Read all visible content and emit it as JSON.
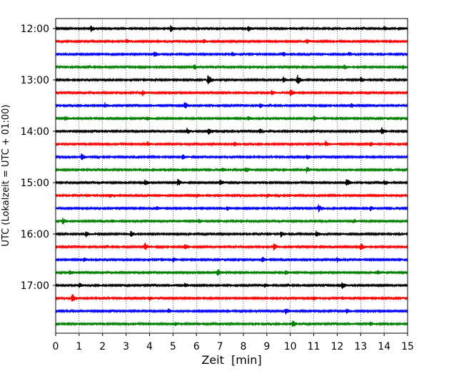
{
  "chart_data": {
    "type": "line",
    "title": "",
    "xlabel": "Zeit  [min]",
    "ylabel": "UTC (Lokalzeit = UTC + 01:00)",
    "xlim": [
      0,
      15
    ],
    "x_ticks": [
      "0",
      "1",
      "2",
      "3",
      "4",
      "5",
      "6",
      "7",
      "8",
      "9",
      "10",
      "11",
      "12",
      "13",
      "14",
      "15"
    ],
    "y_ticks": [
      "12:00",
      "13:00",
      "14:00",
      "15:00",
      "16:00",
      "17:00"
    ],
    "x_grid": "dotted",
    "trace_colors": [
      "#000000",
      "#ff0000",
      "#0000ff",
      "#008000"
    ],
    "series": [
      {
        "start": "12:00",
        "color": "#000000",
        "bursts": [
          {
            "t": 1.5,
            "a": 4
          },
          {
            "t": 4.9,
            "a": 5
          },
          {
            "t": 8.2,
            "a": 5
          },
          {
            "t": 14.0,
            "a": 3
          }
        ]
      },
      {
        "start": "12:15",
        "color": "#ff0000",
        "bursts": [
          {
            "t": 3.0,
            "a": 3
          },
          {
            "t": 6.3,
            "a": 3
          },
          {
            "t": 10.7,
            "a": 3
          }
        ]
      },
      {
        "start": "12:30",
        "color": "#0000ff",
        "bursts": [
          {
            "t": 4.2,
            "a": 5
          },
          {
            "t": 7.5,
            "a": 3
          },
          {
            "t": 9.7,
            "a": 3
          },
          {
            "t": 12.5,
            "a": 3
          }
        ]
      },
      {
        "start": "12:45",
        "color": "#008000",
        "bursts": [
          {
            "t": 5.9,
            "a": 4
          },
          {
            "t": 12.3,
            "a": 3
          },
          {
            "t": 14.8,
            "a": 3
          }
        ]
      },
      {
        "start": "13:00",
        "color": "#000000",
        "bursts": [
          {
            "t": 6.5,
            "a": 8
          },
          {
            "t": 9.7,
            "a": 4
          },
          {
            "t": 10.3,
            "a": 7
          },
          {
            "t": 13.0,
            "a": 4
          }
        ]
      },
      {
        "start": "13:15",
        "color": "#ff0000",
        "bursts": [
          {
            "t": 3.7,
            "a": 4
          },
          {
            "t": 9.2,
            "a": 4
          },
          {
            "t": 10.0,
            "a": 5
          }
        ]
      },
      {
        "start": "13:30",
        "color": "#0000ff",
        "bursts": [
          {
            "t": 2.1,
            "a": 3
          },
          {
            "t": 5.5,
            "a": 5
          },
          {
            "t": 8.7,
            "a": 3
          },
          {
            "t": 12.6,
            "a": 3
          }
        ]
      },
      {
        "start": "13:45",
        "color": "#008000",
        "bursts": [
          {
            "t": 0.4,
            "a": 3
          },
          {
            "t": 3.9,
            "a": 3
          },
          {
            "t": 8.2,
            "a": 3
          },
          {
            "t": 11.0,
            "a": 3
          }
        ]
      },
      {
        "start": "14:00",
        "color": "#000000",
        "bursts": [
          {
            "t": 5.6,
            "a": 4
          },
          {
            "t": 6.5,
            "a": 5
          },
          {
            "t": 8.7,
            "a": 4
          },
          {
            "t": 13.9,
            "a": 5
          }
        ]
      },
      {
        "start": "14:15",
        "color": "#ff0000",
        "bursts": [
          {
            "t": 3.9,
            "a": 3
          },
          {
            "t": 7.6,
            "a": 3
          },
          {
            "t": 11.5,
            "a": 4
          },
          {
            "t": 13.4,
            "a": 3
          }
        ]
      },
      {
        "start": "14:30",
        "color": "#0000ff",
        "bursts": [
          {
            "t": 1.1,
            "a": 5
          },
          {
            "t": 5.4,
            "a": 4
          },
          {
            "t": 10.7,
            "a": 3
          }
        ]
      },
      {
        "start": "14:45",
        "color": "#008000",
        "bursts": [
          {
            "t": 7.1,
            "a": 3
          },
          {
            "t": 8.1,
            "a": 4
          },
          {
            "t": 9.7,
            "a": 3
          },
          {
            "t": 10.7,
            "a": 4
          }
        ]
      },
      {
        "start": "15:00",
        "color": "#000000",
        "bursts": [
          {
            "t": 3.8,
            "a": 4
          },
          {
            "t": 5.2,
            "a": 5
          },
          {
            "t": 7.0,
            "a": 4
          },
          {
            "t": 12.4,
            "a": 6
          },
          {
            "t": 14.0,
            "a": 4
          }
        ]
      },
      {
        "start": "15:15",
        "color": "#ff0000",
        "bursts": [
          {
            "t": 2.3,
            "a": 3
          },
          {
            "t": 6.0,
            "a": 3
          },
          {
            "t": 9.0,
            "a": 3
          }
        ]
      },
      {
        "start": "15:30",
        "color": "#0000ff",
        "bursts": [
          {
            "t": 4.3,
            "a": 3
          },
          {
            "t": 7.3,
            "a": 3
          },
          {
            "t": 11.2,
            "a": 5
          },
          {
            "t": 13.4,
            "a": 3
          }
        ]
      },
      {
        "start": "15:45",
        "color": "#008000",
        "bursts": [
          {
            "t": 0.3,
            "a": 4
          },
          {
            "t": 2.4,
            "a": 3
          },
          {
            "t": 6.1,
            "a": 3
          },
          {
            "t": 12.7,
            "a": 3
          }
        ]
      },
      {
        "start": "16:00",
        "color": "#000000",
        "bursts": [
          {
            "t": 1.3,
            "a": 4
          },
          {
            "t": 3.2,
            "a": 4
          },
          {
            "t": 9.6,
            "a": 4
          },
          {
            "t": 11.1,
            "a": 4
          }
        ]
      },
      {
        "start": "16:15",
        "color": "#ff0000",
        "bursts": [
          {
            "t": 3.8,
            "a": 5
          },
          {
            "t": 5.5,
            "a": 5
          },
          {
            "t": 9.3,
            "a": 5
          },
          {
            "t": 13.0,
            "a": 5
          }
        ]
      },
      {
        "start": "16:30",
        "color": "#0000ff",
        "bursts": [
          {
            "t": 1.2,
            "a": 3
          },
          {
            "t": 5.0,
            "a": 3
          },
          {
            "t": 8.8,
            "a": 4
          },
          {
            "t": 12.0,
            "a": 3
          }
        ]
      },
      {
        "start": "16:45",
        "color": "#008000",
        "bursts": [
          {
            "t": 0.6,
            "a": 3
          },
          {
            "t": 6.9,
            "a": 5
          },
          {
            "t": 9.8,
            "a": 3
          },
          {
            "t": 13.7,
            "a": 3
          }
        ]
      },
      {
        "start": "17:00",
        "color": "#000000",
        "bursts": [
          {
            "t": 1.0,
            "a": 3
          },
          {
            "t": 5.5,
            "a": 3
          },
          {
            "t": 8.9,
            "a": 3
          },
          {
            "t": 12.2,
            "a": 5
          }
        ]
      },
      {
        "start": "17:15",
        "color": "#ff0000",
        "bursts": [
          {
            "t": 0.7,
            "a": 6
          },
          {
            "t": 4.0,
            "a": 3
          },
          {
            "t": 11.0,
            "a": 3
          }
        ]
      },
      {
        "start": "17:30",
        "color": "#0000ff",
        "bursts": [
          {
            "t": 4.8,
            "a": 3
          },
          {
            "t": 9.8,
            "a": 4
          },
          {
            "t": 12.4,
            "a": 3
          }
        ]
      },
      {
        "start": "17:45",
        "color": "#008000",
        "bursts": [
          {
            "t": 5.1,
            "a": 3
          },
          {
            "t": 10.1,
            "a": 5
          },
          {
            "t": 13.4,
            "a": 3
          }
        ]
      }
    ]
  }
}
